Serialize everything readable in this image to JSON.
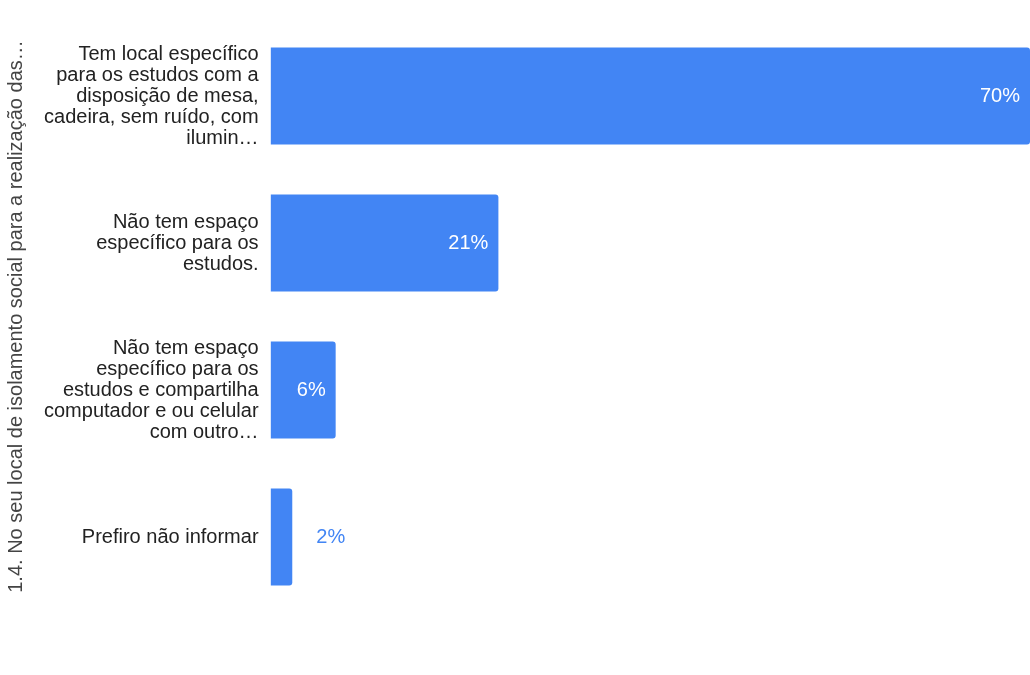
{
  "chart_data": {
    "type": "bar",
    "orientation": "horizontal",
    "ylabel": "1.4. No seu local de isolamento social para a realização das…",
    "categories": [
      "Tem local específico para os estudos com a disposição de mesa, cadeira, sem ruído, com ilumin…",
      "Não tem espaço específico para os estudos.",
      "Não tem espaço específico para os estudos e compartilha computador e ou celular com outro…",
      "Prefiro não informar"
    ],
    "values": [
      70,
      21,
      6,
      2
    ],
    "value_labels": [
      "70%",
      "21%",
      "6%",
      "2%"
    ],
    "color": "#4285f4",
    "grid": false,
    "legend": false
  }
}
